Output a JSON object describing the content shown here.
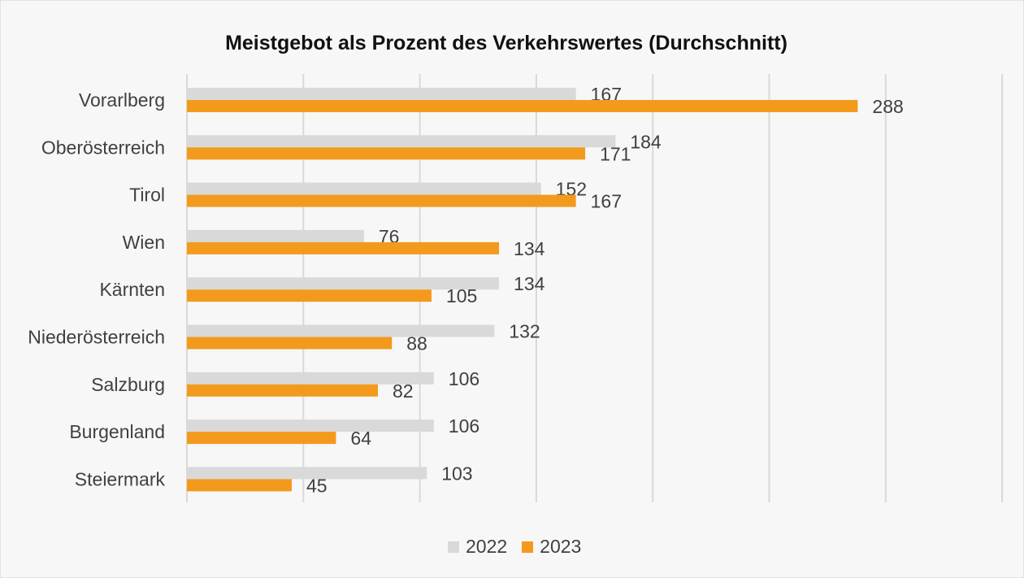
{
  "chart_data": {
    "type": "bar",
    "orientation": "horizontal",
    "title": "Meistgebot als Prozent des Verkehrswertes (Durchschnitt)",
    "categories": [
      "Vorarlberg",
      "Oberösterreich",
      "Tirol",
      "Wien",
      "Kärnten",
      "Niederösterreich",
      "Salzburg",
      "Burgenland",
      "Steiermark"
    ],
    "series": [
      {
        "name": "2022",
        "color": "#d9d9d9",
        "values": [
          167,
          184,
          152,
          76,
          134,
          132,
          106,
          106,
          103
        ]
      },
      {
        "name": "2023",
        "color": "#f39a1d",
        "values": [
          288,
          171,
          167,
          134,
          105,
          88,
          82,
          64,
          45
        ]
      }
    ],
    "xlim": [
      0,
      350
    ],
    "grid": true,
    "data_labels": true,
    "legend_position": "bottom"
  }
}
